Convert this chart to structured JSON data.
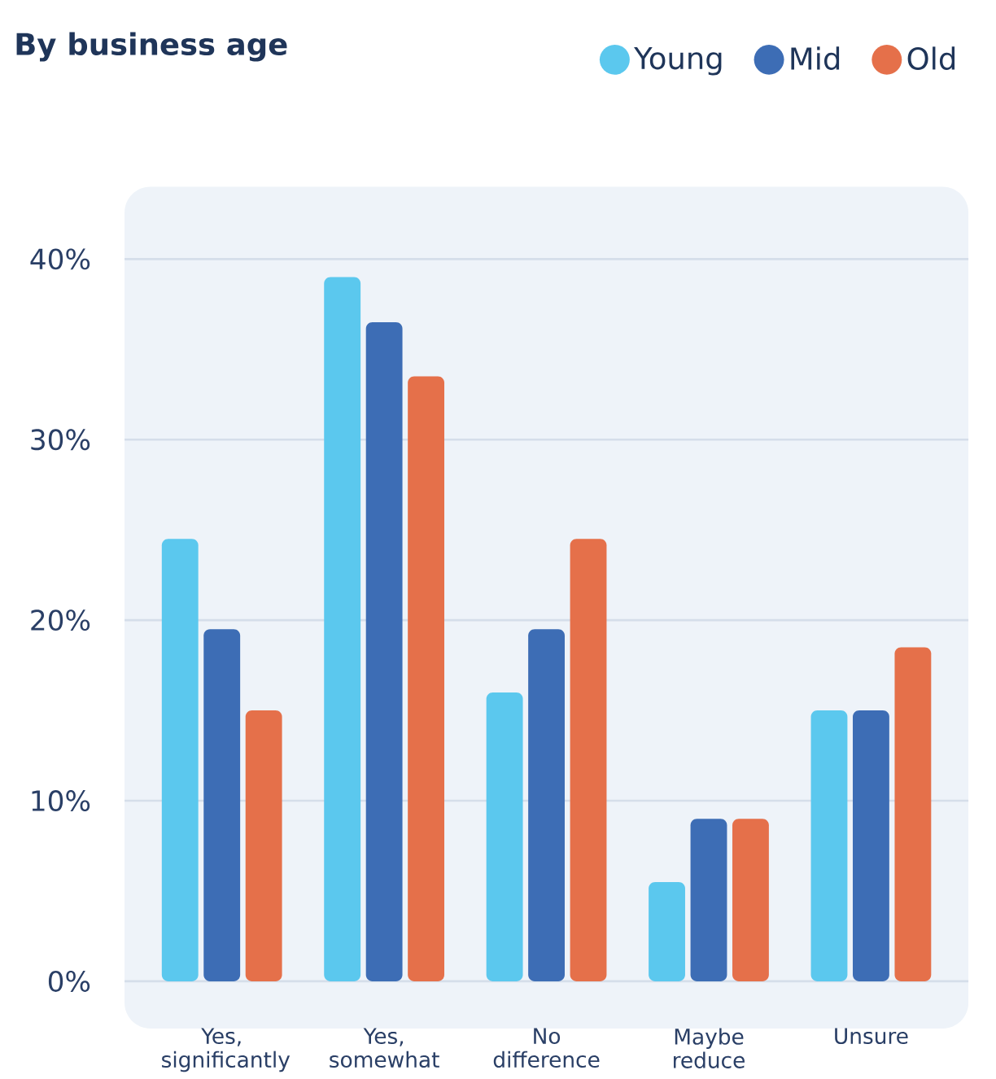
{
  "chart_data": {
    "type": "bar",
    "title": "By business age",
    "categories": [
      "Yes, significantly",
      "Yes, somewhat",
      "No difference",
      "Maybe reduce",
      "Unsure"
    ],
    "series": [
      {
        "name": "Young",
        "color": "#5bc8ee",
        "values": [
          24.5,
          39,
          16,
          5.5,
          15
        ]
      },
      {
        "name": "Mid",
        "color": "#3d6db5",
        "values": [
          19.5,
          36.5,
          19.5,
          9,
          15
        ]
      },
      {
        "name": "Old",
        "color": "#e5704a",
        "values": [
          15,
          33.5,
          24.5,
          9,
          18.5
        ]
      }
    ],
    "ylim": [
      0,
      44
    ],
    "yticks": [
      {
        "value": 0,
        "label": "0%"
      },
      {
        "value": 10,
        "label": "10%"
      },
      {
        "value": 20,
        "label": "20%"
      },
      {
        "value": 30,
        "label": "30%"
      },
      {
        "value": 40,
        "label": "40%"
      }
    ],
    "grid": "y",
    "legend": "top right"
  }
}
